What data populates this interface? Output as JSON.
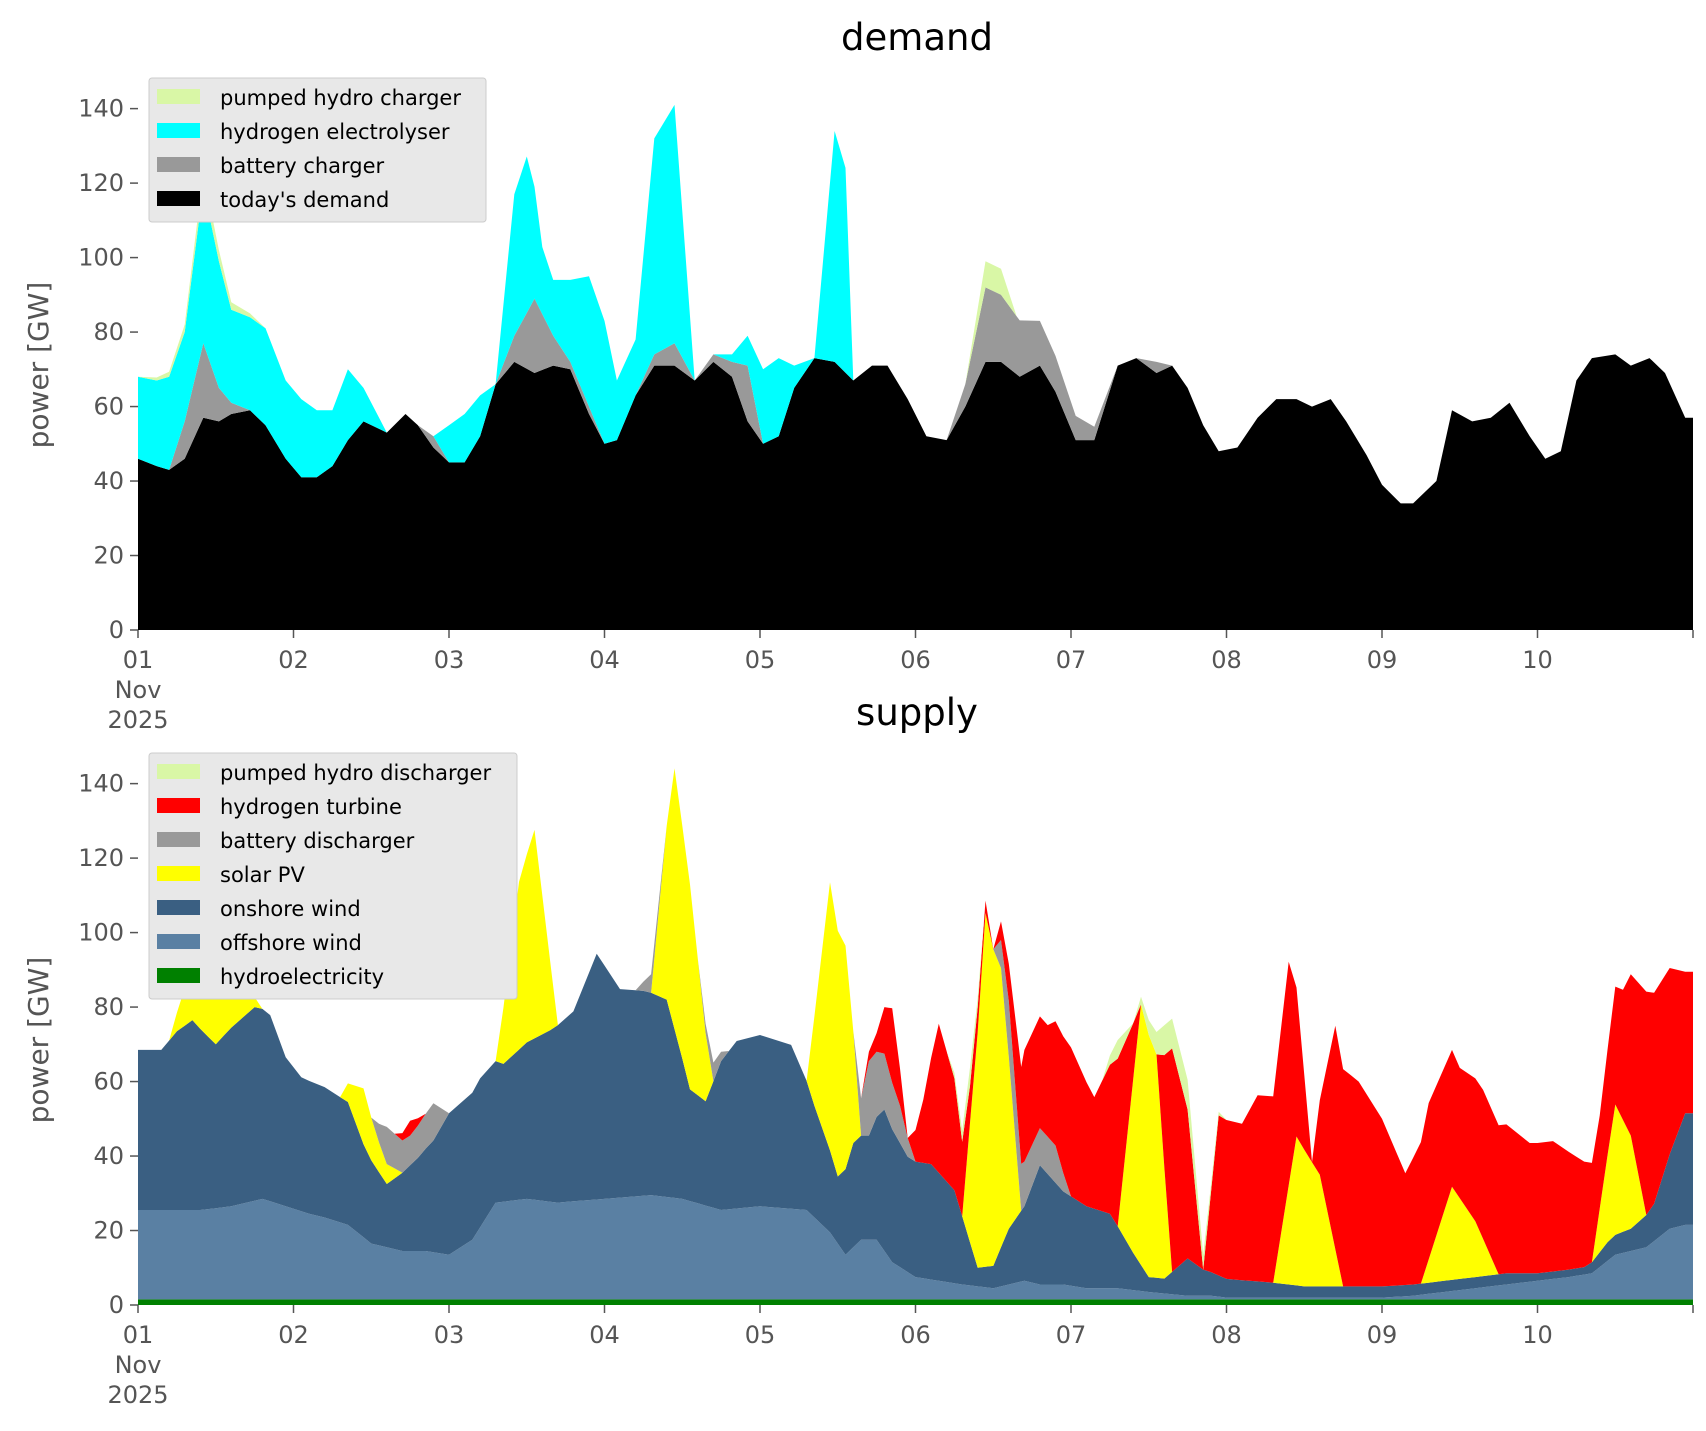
{
  "colors": {
    "pumped_hydro": "#d9f7a6",
    "hydrogen_electrolyser": "#00ffff",
    "battery": "#999999",
    "todays_demand": "#000000",
    "hydrogen_turbine": "#ff0000",
    "solar": "#ffff00",
    "onshore": "#3a5f82",
    "offshore": "#5a80a3",
    "hydro": "#008000"
  },
  "chart_data": [
    {
      "type": "area",
      "stacked": true,
      "title": "demand",
      "xlabel": "",
      "ylabel": "power [GW]",
      "ylim": [
        0,
        145
      ],
      "xlim": [
        "2025-11-01",
        "2025-11-11"
      ],
      "yticks": [
        "0",
        "20",
        "40",
        "60",
        "80",
        "100",
        "120",
        "140"
      ],
      "xticks": [
        "01",
        "02",
        "03",
        "04",
        "05",
        "06",
        "07",
        "08",
        "09",
        "10"
      ],
      "xtick_sub": [
        "Nov",
        "2025"
      ],
      "grid": false,
      "legend_position": "top-left",
      "x_unit": "day of November 2025",
      "series": [
        {
          "name": "today's demand",
          "color": "#000000",
          "x": [
            1,
            1.12,
            1.2,
            1.3,
            1.42,
            1.52,
            1.6,
            1.72,
            1.82,
            1.95,
            2.05,
            2.15,
            2.25,
            2.35,
            2.45,
            2.6,
            2.72,
            2.8,
            2.9,
            3.0,
            3.1,
            3.2,
            3.3,
            3.42,
            3.55,
            3.67,
            3.78,
            3.9,
            4.0,
            4.08,
            4.2,
            4.32,
            4.45,
            4.58,
            4.7,
            4.82,
            4.92,
            5.02,
            5.12,
            5.22,
            5.35,
            5.48,
            5.6,
            5.72,
            5.82,
            5.95,
            6.07,
            6.2,
            6.32,
            6.45,
            6.55,
            6.67,
            6.8,
            6.9,
            7.03,
            7.15,
            7.3,
            7.42,
            7.55,
            7.65,
            7.75,
            7.85,
            7.95,
            8.07,
            8.2,
            8.32,
            8.45,
            8.55,
            8.67,
            8.77,
            8.9,
            9.0,
            9.12,
            9.2,
            9.35,
            9.45,
            9.58,
            9.7,
            9.82,
            9.95,
            10.05,
            10.15,
            10.25,
            10.35,
            10.5,
            10.6,
            10.72,
            10.82,
            10.95
          ],
          "values": [
            46,
            44,
            43,
            46,
            57,
            56,
            58,
            59,
            55,
            46,
            41,
            41,
            44,
            51,
            56,
            53,
            58,
            55,
            49,
            45,
            45,
            52,
            66,
            72,
            69,
            71,
            70,
            58,
            50,
            51,
            63,
            71,
            71,
            67,
            72,
            68,
            56,
            50,
            52,
            65,
            73,
            72,
            67,
            71,
            71,
            62,
            52,
            51,
            60,
            72,
            72,
            68,
            71,
            64,
            51,
            51,
            71,
            73,
            69,
            71,
            65,
            55,
            48,
            49,
            57,
            62,
            62,
            60,
            62,
            56,
            47,
            39,
            34,
            34,
            40,
            59,
            56,
            57,
            61,
            52,
            46,
            48,
            67,
            73,
            74,
            71,
            73,
            69,
            57
          ]
        },
        {
          "name": "battery charger",
          "color": "#999999",
          "x": [
            1,
            1.2,
            1.3,
            1.42,
            1.52,
            1.6,
            1.72,
            1.82,
            1.95,
            2.72,
            2.8,
            2.9,
            3.0,
            3.2,
            3.3,
            3.42,
            3.55,
            3.67,
            3.78,
            3.9,
            4.0,
            4.2,
            4.32,
            4.45,
            4.58,
            4.82,
            4.92,
            5.02,
            6.2,
            6.32,
            6.45,
            6.55,
            7.3,
            7.42,
            7.55,
            7.65
          ],
          "values": [
            0,
            0,
            10,
            20,
            9,
            3,
            0,
            0,
            0,
            0,
            0,
            3,
            0,
            0,
            0,
            7,
            20,
            8,
            2,
            2,
            0,
            0,
            3,
            6,
            0,
            4,
            15,
            0,
            0,
            6,
            20,
            18,
            0,
            0,
            3,
            0
          ]
        },
        {
          "name": "hydrogen electrolyser",
          "color": "#00ffff",
          "x": [
            1,
            1.12,
            1.2,
            1.3,
            1.42,
            1.52,
            1.6,
            1.72,
            1.82,
            1.95,
            2.05,
            2.15,
            2.25,
            2.35,
            2.45,
            2.6,
            2.72,
            2.8,
            2.9,
            3.0,
            3.1,
            3.2,
            3.3,
            3.42,
            3.5,
            3.6,
            3.67,
            3.78,
            3.9,
            4.0,
            4.08,
            4.2,
            4.32,
            4.45,
            4.58,
            4.7,
            4.82,
            4.92,
            5.02,
            5.12,
            5.22,
            5.35,
            5.48,
            5.55,
            5.6,
            5.72
          ],
          "values": [
            22,
            23,
            25,
            24,
            42,
            34,
            25,
            25,
            26,
            21,
            21,
            18,
            15,
            19,
            9,
            0,
            0,
            0,
            0,
            10,
            13,
            11,
            0,
            38,
            42,
            18,
            15,
            22,
            35,
            33,
            16,
            15,
            58,
            64,
            0,
            0,
            2,
            8,
            20,
            21,
            6,
            0,
            62,
            55,
            0,
            0
          ]
        },
        {
          "name": "pumped hydro charger",
          "color": "#d9f7a6",
          "x": [
            1,
            1.3,
            1.42,
            1.52,
            1.6,
            1.72,
            1.82,
            6.2,
            6.32,
            6.45,
            6.55,
            6.65
          ],
          "values": [
            0,
            2,
            4,
            3,
            2,
            1,
            0,
            0,
            0,
            7,
            7,
            0
          ]
        }
      ]
    },
    {
      "type": "area",
      "stacked": true,
      "title": "supply",
      "xlabel": "",
      "ylabel": "power [GW]",
      "ylim": [
        0,
        145
      ],
      "xlim": [
        "2025-11-01",
        "2025-11-11"
      ],
      "yticks": [
        "0",
        "20",
        "40",
        "60",
        "80",
        "100",
        "120",
        "140"
      ],
      "xticks": [
        "01",
        "02",
        "03",
        "04",
        "05",
        "06",
        "07",
        "08",
        "09",
        "10"
      ],
      "xtick_sub": [
        "Nov",
        "2025"
      ],
      "grid": false,
      "legend_position": "top-left",
      "x_unit": "day of November 2025",
      "series": [
        {
          "name": "hydroelectricity",
          "color": "#008000",
          "x": [
            1,
            11
          ],
          "values": [
            1.5,
            1.5
          ]
        },
        {
          "name": "offshore wind",
          "color": "#5a80a3",
          "x": [
            1,
            1.25,
            1.4,
            1.6,
            1.8,
            1.95,
            2.1,
            2.2,
            2.35,
            2.5,
            2.7,
            2.85,
            3.0,
            3.15,
            3.3,
            3.5,
            3.7,
            4.0,
            4.3,
            4.5,
            4.75,
            5.0,
            5.3,
            5.45,
            5.55,
            5.65,
            5.75,
            5.85,
            6.0,
            6.15,
            6.3,
            6.5,
            6.7,
            6.8,
            6.95,
            7.1,
            7.3,
            7.5,
            7.75,
            7.9,
            8.0,
            8.2,
            8.4,
            8.6,
            8.8,
            9.0,
            9.2,
            9.4,
            9.6,
            9.8,
            10.0,
            10.2,
            10.35,
            10.5,
            10.7,
            10.85,
            10.95
          ],
          "values": [
            24,
            24,
            24,
            25,
            27,
            25,
            23,
            22,
            20,
            15,
            13,
            13,
            12,
            16,
            26,
            27,
            26,
            27,
            28,
            27,
            24,
            25,
            24,
            18,
            12,
            16,
            16,
            10,
            6,
            5,
            4,
            3,
            5,
            4,
            4,
            3,
            3,
            2,
            1,
            1,
            0.5,
            0.5,
            0.5,
            0.5,
            0.5,
            0.5,
            1,
            2,
            3,
            4,
            5,
            6,
            7,
            12,
            14,
            19,
            20
          ]
        },
        {
          "name": "onshore wind",
          "color": "#3a5f82",
          "x": [
            1,
            1.15,
            1.25,
            1.35,
            1.5,
            1.6,
            1.75,
            1.85,
            1.95,
            2.05,
            2.2,
            2.35,
            2.45,
            2.6,
            2.7,
            2.8,
            2.9,
            3.0,
            3.2,
            3.35,
            3.5,
            3.65,
            3.8,
            3.95,
            4.1,
            4.25,
            4.4,
            4.55,
            4.65,
            4.75,
            4.85,
            5.0,
            5.2,
            5.35,
            5.5,
            5.6,
            5.7,
            5.8,
            5.95,
            6.1,
            6.25,
            6.4,
            6.5,
            6.6,
            6.7,
            6.8,
            6.95,
            7.1,
            7.25,
            7.4,
            7.5,
            7.6,
            7.75,
            7.85,
            8.0,
            8.3,
            8.5,
            8.7,
            9.0,
            9.2,
            9.4,
            9.6,
            9.8,
            10.0,
            10.3,
            10.45,
            10.6,
            10.75,
            10.95
          ],
          "values": [
            43,
            43,
            48,
            51,
            44,
            48,
            52,
            50,
            40,
            36,
            35,
            33,
            25,
            17,
            21,
            25,
            30,
            38,
            40,
            37,
            42,
            46,
            51,
            66,
            56,
            55,
            53,
            30,
            28,
            40,
            45,
            46,
            44,
            30,
            18,
            28,
            28,
            38,
            31,
            31,
            25,
            5,
            6,
            15,
            20,
            32,
            25,
            22,
            20,
            10,
            4,
            4,
            10,
            7,
            5,
            4,
            3,
            3,
            3,
            3,
            3,
            3,
            3,
            2,
            2,
            5,
            6,
            10,
            30
          ]
        },
        {
          "name": "solar PV",
          "color": "#ffff00",
          "x": [
            1,
            1.2,
            1.3,
            1.45,
            1.55,
            1.65,
            1.8,
            2.3,
            2.45,
            2.55,
            2.7,
            3.3,
            3.45,
            3.55,
            3.7,
            4.3,
            4.45,
            4.55,
            4.7,
            5.3,
            5.45,
            5.55,
            5.65,
            5.85,
            6.1,
            6.3,
            6.45,
            6.55,
            6.68,
            7.3,
            7.45,
            7.55,
            7.65,
            8.3,
            8.45,
            8.6,
            8.75,
            9.25,
            9.45,
            9.6,
            9.75,
            10.35,
            10.5,
            10.6,
            10.7
          ],
          "values": [
            0,
            0,
            10,
            50,
            25,
            8,
            0,
            0,
            15,
            8,
            0,
            0,
            45,
            56,
            0,
            0,
            70,
            55,
            0,
            0,
            72,
            60,
            0,
            0,
            0,
            0,
            95,
            75,
            0,
            0,
            70,
            60,
            0,
            0,
            40,
            30,
            0,
            0,
            25,
            15,
            0,
            0,
            35,
            25,
            0
          ]
        },
        {
          "name": "battery discharger",
          "color": "#999999",
          "x": [
            1,
            2.5,
            2.6,
            2.75,
            2.9,
            3.0,
            4.2,
            4.3,
            4.4,
            4.6,
            4.7,
            4.8,
            5.6,
            5.7,
            5.8,
            5.9,
            6.0,
            6.5,
            6.6,
            6.7,
            6.8,
            6.9,
            7.0
          ],
          "values": [
            0,
            0,
            10,
            8,
            10,
            0,
            0,
            5,
            0,
            0,
            5,
            0,
            0,
            20,
            15,
            10,
            0,
            0,
            15,
            12,
            10,
            10,
            0
          ]
        },
        {
          "name": "hydrogen turbine",
          "color": "#ff0000",
          "x": [
            1,
            2.65,
            2.75,
            2.85,
            5.65,
            5.75,
            5.85,
            5.95,
            6.05,
            6.15,
            6.25,
            6.35,
            6.5,
            6.6,
            6.7,
            6.85,
            7.0,
            7.15,
            7.3,
            7.45,
            7.55,
            7.65,
            7.75,
            7.85,
            7.95,
            8.1,
            8.2,
            8.3,
            8.4,
            8.55,
            8.7,
            8.85,
            9.0,
            9.15,
            9.3,
            9.5,
            9.65,
            9.8,
            9.95,
            10.1,
            10.25,
            10.4,
            10.55,
            10.7,
            10.85,
            10.95
          ],
          "values": [
            0,
            0,
            4,
            0,
            0,
            5,
            20,
            0,
            17,
            40,
            30,
            10,
            0,
            10,
            30,
            30,
            40,
            30,
            45,
            0,
            0,
            60,
            40,
            0,
            43,
            42,
            50,
            50,
            60,
            0,
            60,
            55,
            45,
            30,
            42,
            35,
            40,
            40,
            35,
            35,
            30,
            25,
            35,
            60,
            50,
            38
          ]
        },
        {
          "name": "pumped hydro discharger",
          "color": "#d9f7a6",
          "x": [
            1,
            6.2,
            6.3,
            6.35,
            6.45,
            7.2,
            7.3,
            7.4,
            7.6,
            7.75,
            7.9,
            8.0
          ],
          "values": [
            0,
            0,
            3,
            5,
            0,
            0,
            5,
            0,
            8,
            8,
            2,
            0
          ]
        }
      ]
    }
  ]
}
